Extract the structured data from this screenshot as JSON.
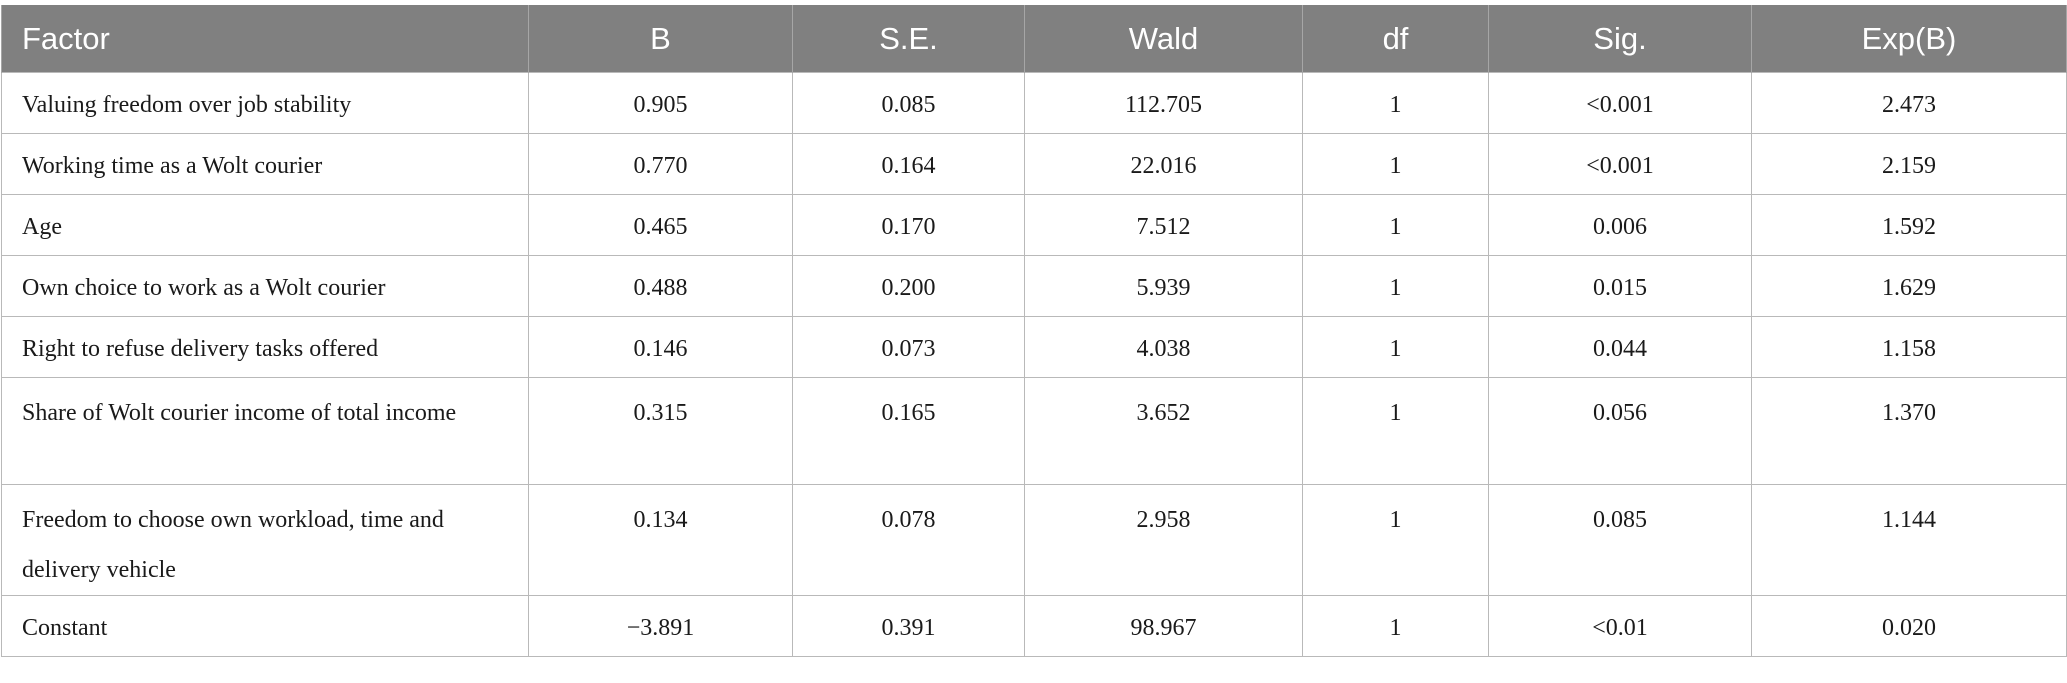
{
  "table": {
    "headers": [
      "Factor",
      "B",
      "S.E.",
      "Wald",
      "df",
      "Sig.",
      "Exp(B)"
    ],
    "rows": [
      [
        "Valuing freedom over job stability",
        "0.905",
        "0.085",
        "112.705",
        "1",
        "<0.001",
        "2.473"
      ],
      [
        "Working time as a Wolt courier",
        "0.770",
        "0.164",
        "22.016",
        "1",
        "<0.001",
        "2.159"
      ],
      [
        "Age",
        "0.465",
        "0.170",
        "7.512",
        "1",
        "0.006",
        "1.592"
      ],
      [
        "Own choice to work as a Wolt courier",
        "0.488",
        "0.200",
        "5.939",
        "1",
        "0.015",
        "1.629"
      ],
      [
        "Right to refuse delivery tasks offered",
        "0.146",
        "0.073",
        "4.038",
        "1",
        "0.044",
        "1.158"
      ],
      [
        "Share of Wolt courier income of total income",
        "0.315",
        "0.165",
        "3.652",
        "1",
        "0.056",
        "1.370"
      ],
      [
        "Freedom to choose own workload, time and delivery vehicle",
        "0.134",
        "0.078",
        "2.958",
        "1",
        "0.085",
        "1.144"
      ],
      [
        "Constant",
        "−3.891",
        "0.391",
        "98.967",
        "1",
        "<0.01",
        "0.020"
      ]
    ]
  },
  "colors": {
    "header_bg": "#808080",
    "header_text": "#ffffff",
    "grid": "#b9b9b9"
  }
}
